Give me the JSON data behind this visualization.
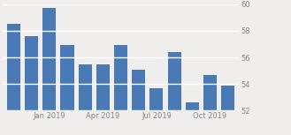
{
  "x_positions": [
    0,
    1,
    2,
    3,
    4,
    5,
    6,
    7,
    8,
    9,
    10,
    11,
    12
  ],
  "values": [
    58.5,
    57.6,
    59.7,
    56.9,
    55.5,
    55.5,
    56.9,
    55.1,
    53.7,
    56.4,
    52.6,
    54.7,
    53.9
  ],
  "bar_color": "#4a7ab5",
  "background_color": "#f0eeec",
  "ylim": [
    52,
    60
  ],
  "yticks": [
    52,
    54,
    56,
    58,
    60
  ],
  "xtick_labels": [
    "Jan 2019",
    "Apr 2019",
    "Jul 2019",
    "Oct 2019"
  ],
  "xtick_positions": [
    2,
    5,
    8,
    11
  ],
  "tick_fontsize": 6.0,
  "bar_width": 0.75,
  "grid_color": "#ffffff",
  "grid_linewidth": 1.0
}
